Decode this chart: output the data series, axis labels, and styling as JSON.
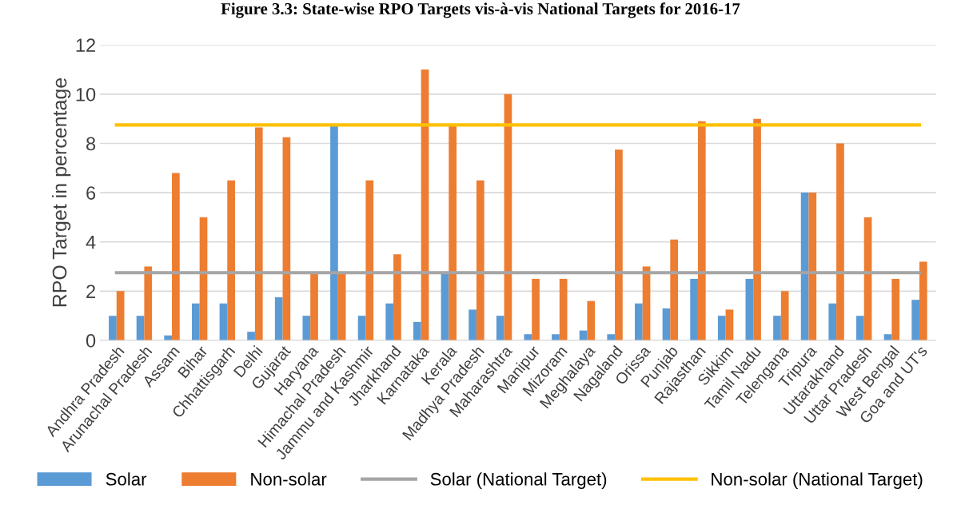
{
  "chart_data": {
    "type": "bar",
    "title": "Figure 3.3: State-wise RPO Targets vis-à-vis National Targets for 2016-17",
    "ylabel": "RPO Target in percentage",
    "categories": [
      "Andhra Pradesh",
      "Arunachal Pradesh",
      "Assam",
      "Bihar",
      "Chhattisgarh",
      "Delhi",
      "Gujarat",
      "Haryana",
      "Himachal Pradesh",
      "Jammu and Kashmir",
      "Jharkhand",
      "Karnataka",
      "Kerala",
      "Madhya Pradesh",
      "Maharashtra",
      "Manipur",
      "Mizoram",
      "Meghalaya",
      "Nagaland",
      "Orissa",
      "Punjab",
      "Rajasthan",
      "Sikkim",
      "Tamil Nadu",
      "Telengana",
      "Tripura",
      "Uttarakhand",
      "Uttar Pradesh",
      "West Bengal",
      "Goa and UT's"
    ],
    "series": [
      {
        "name": "Solar",
        "color": "#5b9bd5",
        "values": [
          1,
          1,
          0.2,
          1.5,
          1.5,
          0.35,
          1.75,
          1,
          8.75,
          1,
          1.5,
          0.75,
          2.75,
          1.25,
          1,
          0.25,
          0.25,
          0.4,
          0.25,
          1.5,
          1.3,
          2.5,
          1,
          2.5,
          1,
          6,
          1.5,
          1,
          0.25,
          1.65
        ]
      },
      {
        "name": "Non-solar",
        "color": "#ed7d31",
        "values": [
          2,
          3,
          6.8,
          5,
          6.5,
          8.65,
          8.25,
          2.75,
          2.75,
          6.5,
          3.5,
          11,
          8.75,
          6.5,
          10,
          2.5,
          2.5,
          1.6,
          7.75,
          3,
          4.1,
          8.9,
          1.25,
          9,
          2,
          6,
          8,
          5,
          2.5,
          3.2
        ]
      },
      {
        "name": "Solar (National Target)",
        "type": "line",
        "color": "#a5a5a5",
        "values": [
          2.75,
          2.75,
          2.75,
          2.75,
          2.75,
          2.75,
          2.75,
          2.75,
          2.75,
          2.75,
          2.75,
          2.75,
          2.75,
          2.75,
          2.75,
          2.75,
          2.75,
          2.75,
          2.75,
          2.75,
          2.75,
          2.75,
          2.75,
          2.75,
          2.75,
          2.75,
          2.75,
          2.75,
          2.75,
          2.75
        ]
      },
      {
        "name": "Non-solar (National Target)",
        "type": "line",
        "color": "#ffc000",
        "values": [
          8.75,
          8.75,
          8.75,
          8.75,
          8.75,
          8.75,
          8.75,
          8.75,
          8.75,
          8.75,
          8.75,
          8.75,
          8.75,
          8.75,
          8.75,
          8.75,
          8.75,
          8.75,
          8.75,
          8.75,
          8.75,
          8.75,
          8.75,
          8.75,
          8.75,
          8.75,
          8.75,
          8.75,
          8.75,
          8.75
        ]
      }
    ],
    "ylim": [
      0,
      12
    ],
    "yticks": [
      0,
      2,
      4,
      6,
      8,
      10,
      12
    ],
    "grid": "y",
    "legend": "bottom"
  }
}
